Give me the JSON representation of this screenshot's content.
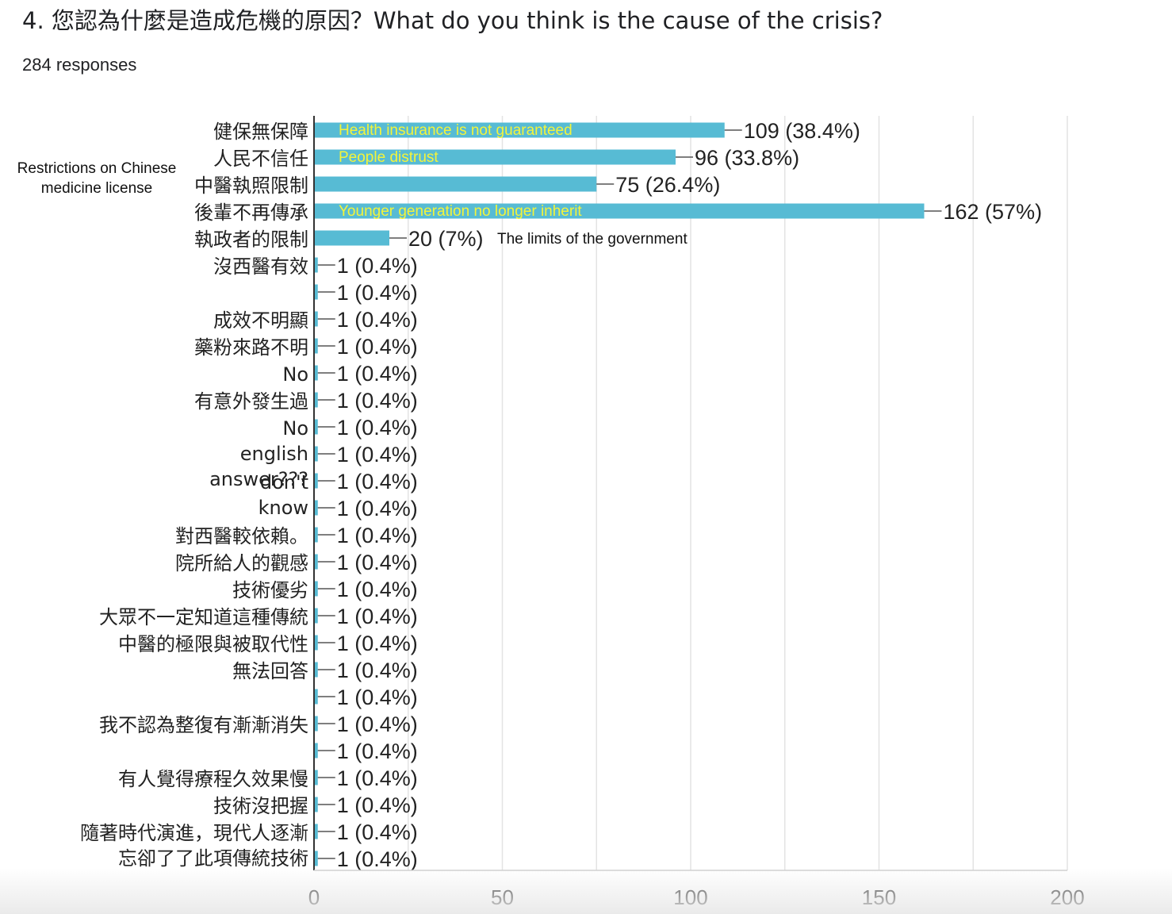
{
  "question": {
    "title": "4. 您認為什麼是造成危機的原因？What do you think is the cause of the crisis?",
    "responses": "284 responses"
  },
  "colors": {
    "bar": "#57bbd4",
    "grid": "#e3e3e3",
    "axis": "#333333",
    "annotation": "#f4f43a"
  },
  "chart_data": {
    "type": "bar",
    "orientation": "horizontal",
    "categories": [
      "健保無保障",
      "人民不信任",
      "中醫執照限制",
      "後輩不再傳承",
      "執政者的限制",
      "沒西醫有效",
      "",
      "成效不明顯",
      "藥粉來路不明",
      "No",
      "有意外發生過",
      "No english answer???",
      "",
      "don't know",
      "",
      "對西醫較依賴。",
      "院所給人的觀感",
      "技術優劣",
      "大眾不一定知道這種傳統",
      "中醫的極限與被取代性",
      "無法回答",
      "",
      "我不認為整復有漸漸消失",
      "",
      "有人覺得療程久效果慢",
      "技術沒把握",
      "隨著時代演進，現代人逐漸 忘卻了了此項傳統技術",
      ""
    ],
    "values": [
      109,
      96,
      75,
      162,
      20,
      1,
      1,
      1,
      1,
      1,
      1,
      1,
      1,
      1,
      1,
      1,
      1,
      1,
      1,
      1,
      1,
      1,
      1,
      1,
      1,
      1,
      1,
      1
    ],
    "labels": [
      "109 (38.4%)",
      "96 (33.8%)",
      "75 (26.4%)",
      "162 (57%)",
      "20 (7%)",
      "1 (0.4%)",
      "1 (0.4%)",
      "1 (0.4%)",
      "1 (0.4%)",
      "1 (0.4%)",
      "1 (0.4%)",
      "1 (0.4%)",
      "1 (0.4%)",
      "1 (0.4%)",
      "1 (0.4%)",
      "1 (0.4%)",
      "1 (0.4%)",
      "1 (0.4%)",
      "1 (0.4%)",
      "1 (0.4%)",
      "1 (0.4%)",
      "1 (0.4%)",
      "1 (0.4%)",
      "1 (0.4%)",
      "1 (0.4%)",
      "1 (0.4%)",
      "1 (0.4%)",
      "1 (0.4%)"
    ],
    "xlim": [
      0,
      200
    ],
    "xticks": [
      0,
      50,
      100,
      150,
      200
    ],
    "grid": true,
    "annotations": {
      "inside_bars": [
        {
          "row": 0,
          "text": "Health insurance is not guaranteed"
        },
        {
          "row": 1,
          "text": "People distrust"
        },
        {
          "row": 3,
          "text": "Younger generation no longer inherit"
        }
      ],
      "after_label": [
        {
          "row": 4,
          "text": "The limits of the government"
        }
      ],
      "left_note": {
        "row": 2,
        "lines": [
          "Restrictions on Chinese",
          "medicine license"
        ]
      }
    }
  }
}
